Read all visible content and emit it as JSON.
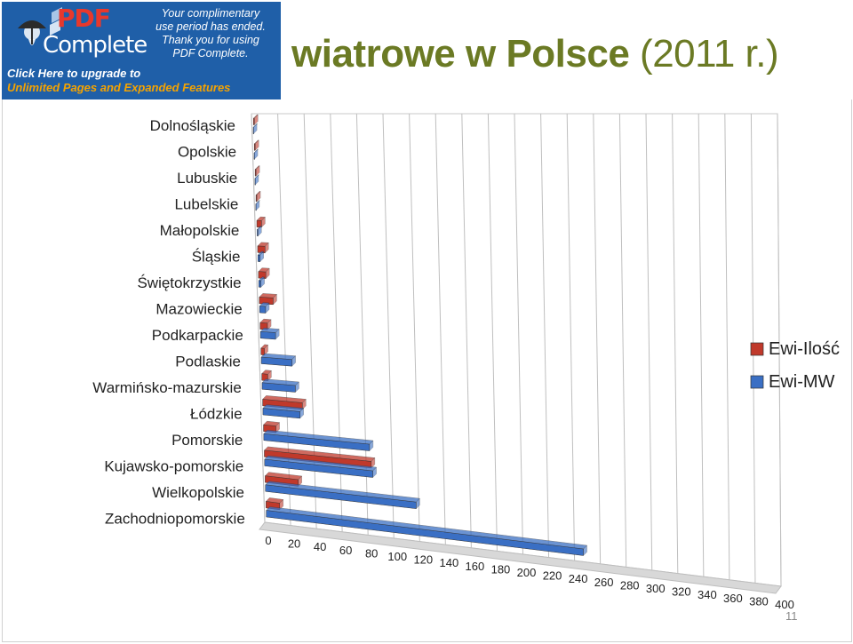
{
  "banner": {
    "brand_top": "PDF",
    "brand_bottom": "Complete",
    "notice_lines": [
      "Your complimentary",
      "use period has ended.",
      "Thank you for using",
      "PDF Complete."
    ],
    "upgrade_line1": "Click Here to upgrade to",
    "upgrade_line2": "Unlimited Pages and Expanded Features"
  },
  "slide": {
    "title_main": "wiatrowe w Polsce",
    "title_year": "(2011 r.)",
    "page_number": "11"
  },
  "colors": {
    "ilosc": "#c0392b",
    "mw": "#3a6fc4",
    "title": "#6b7a24"
  },
  "chart_data": {
    "type": "bar",
    "orientation": "horizontal",
    "three_d": true,
    "categories": [
      "Dolnośląskie",
      "Opolskie",
      "Lubuskie",
      "Lubelskie",
      "Małopolskie",
      "Śląskie",
      "Świętokrzystkie",
      "Mazowieckie",
      "Podkarpackie",
      "Podlaskie",
      "Warmińsko-mazurskie",
      "Łódzkie",
      "Pomorskie",
      "Kujawsko-pomorskie",
      "Wielkopolskie",
      "Zachodniopomorskie"
    ],
    "series": [
      {
        "name": "Ewi-Ilość",
        "values": [
          2,
          2,
          2,
          2,
          5,
          7,
          7,
          12,
          7,
          4,
          6,
          32,
          11,
          84,
          27,
          12
        ]
      },
      {
        "name": "Ewi-MW",
        "values": [
          1,
          1,
          1,
          1,
          2,
          3,
          3,
          6,
          13,
          25,
          27,
          30,
          83,
          85,
          118,
          247
        ]
      }
    ],
    "x_ticks": [
      "0",
      "20",
      "40",
      "60",
      "80",
      "100",
      "120",
      "140",
      "160",
      "180",
      "200",
      "220",
      "240",
      "260",
      "280",
      "300",
      "320",
      "340",
      "360",
      "380",
      "400"
    ],
    "xlim": [
      0,
      400
    ],
    "grid": true,
    "legend_position": "right"
  }
}
